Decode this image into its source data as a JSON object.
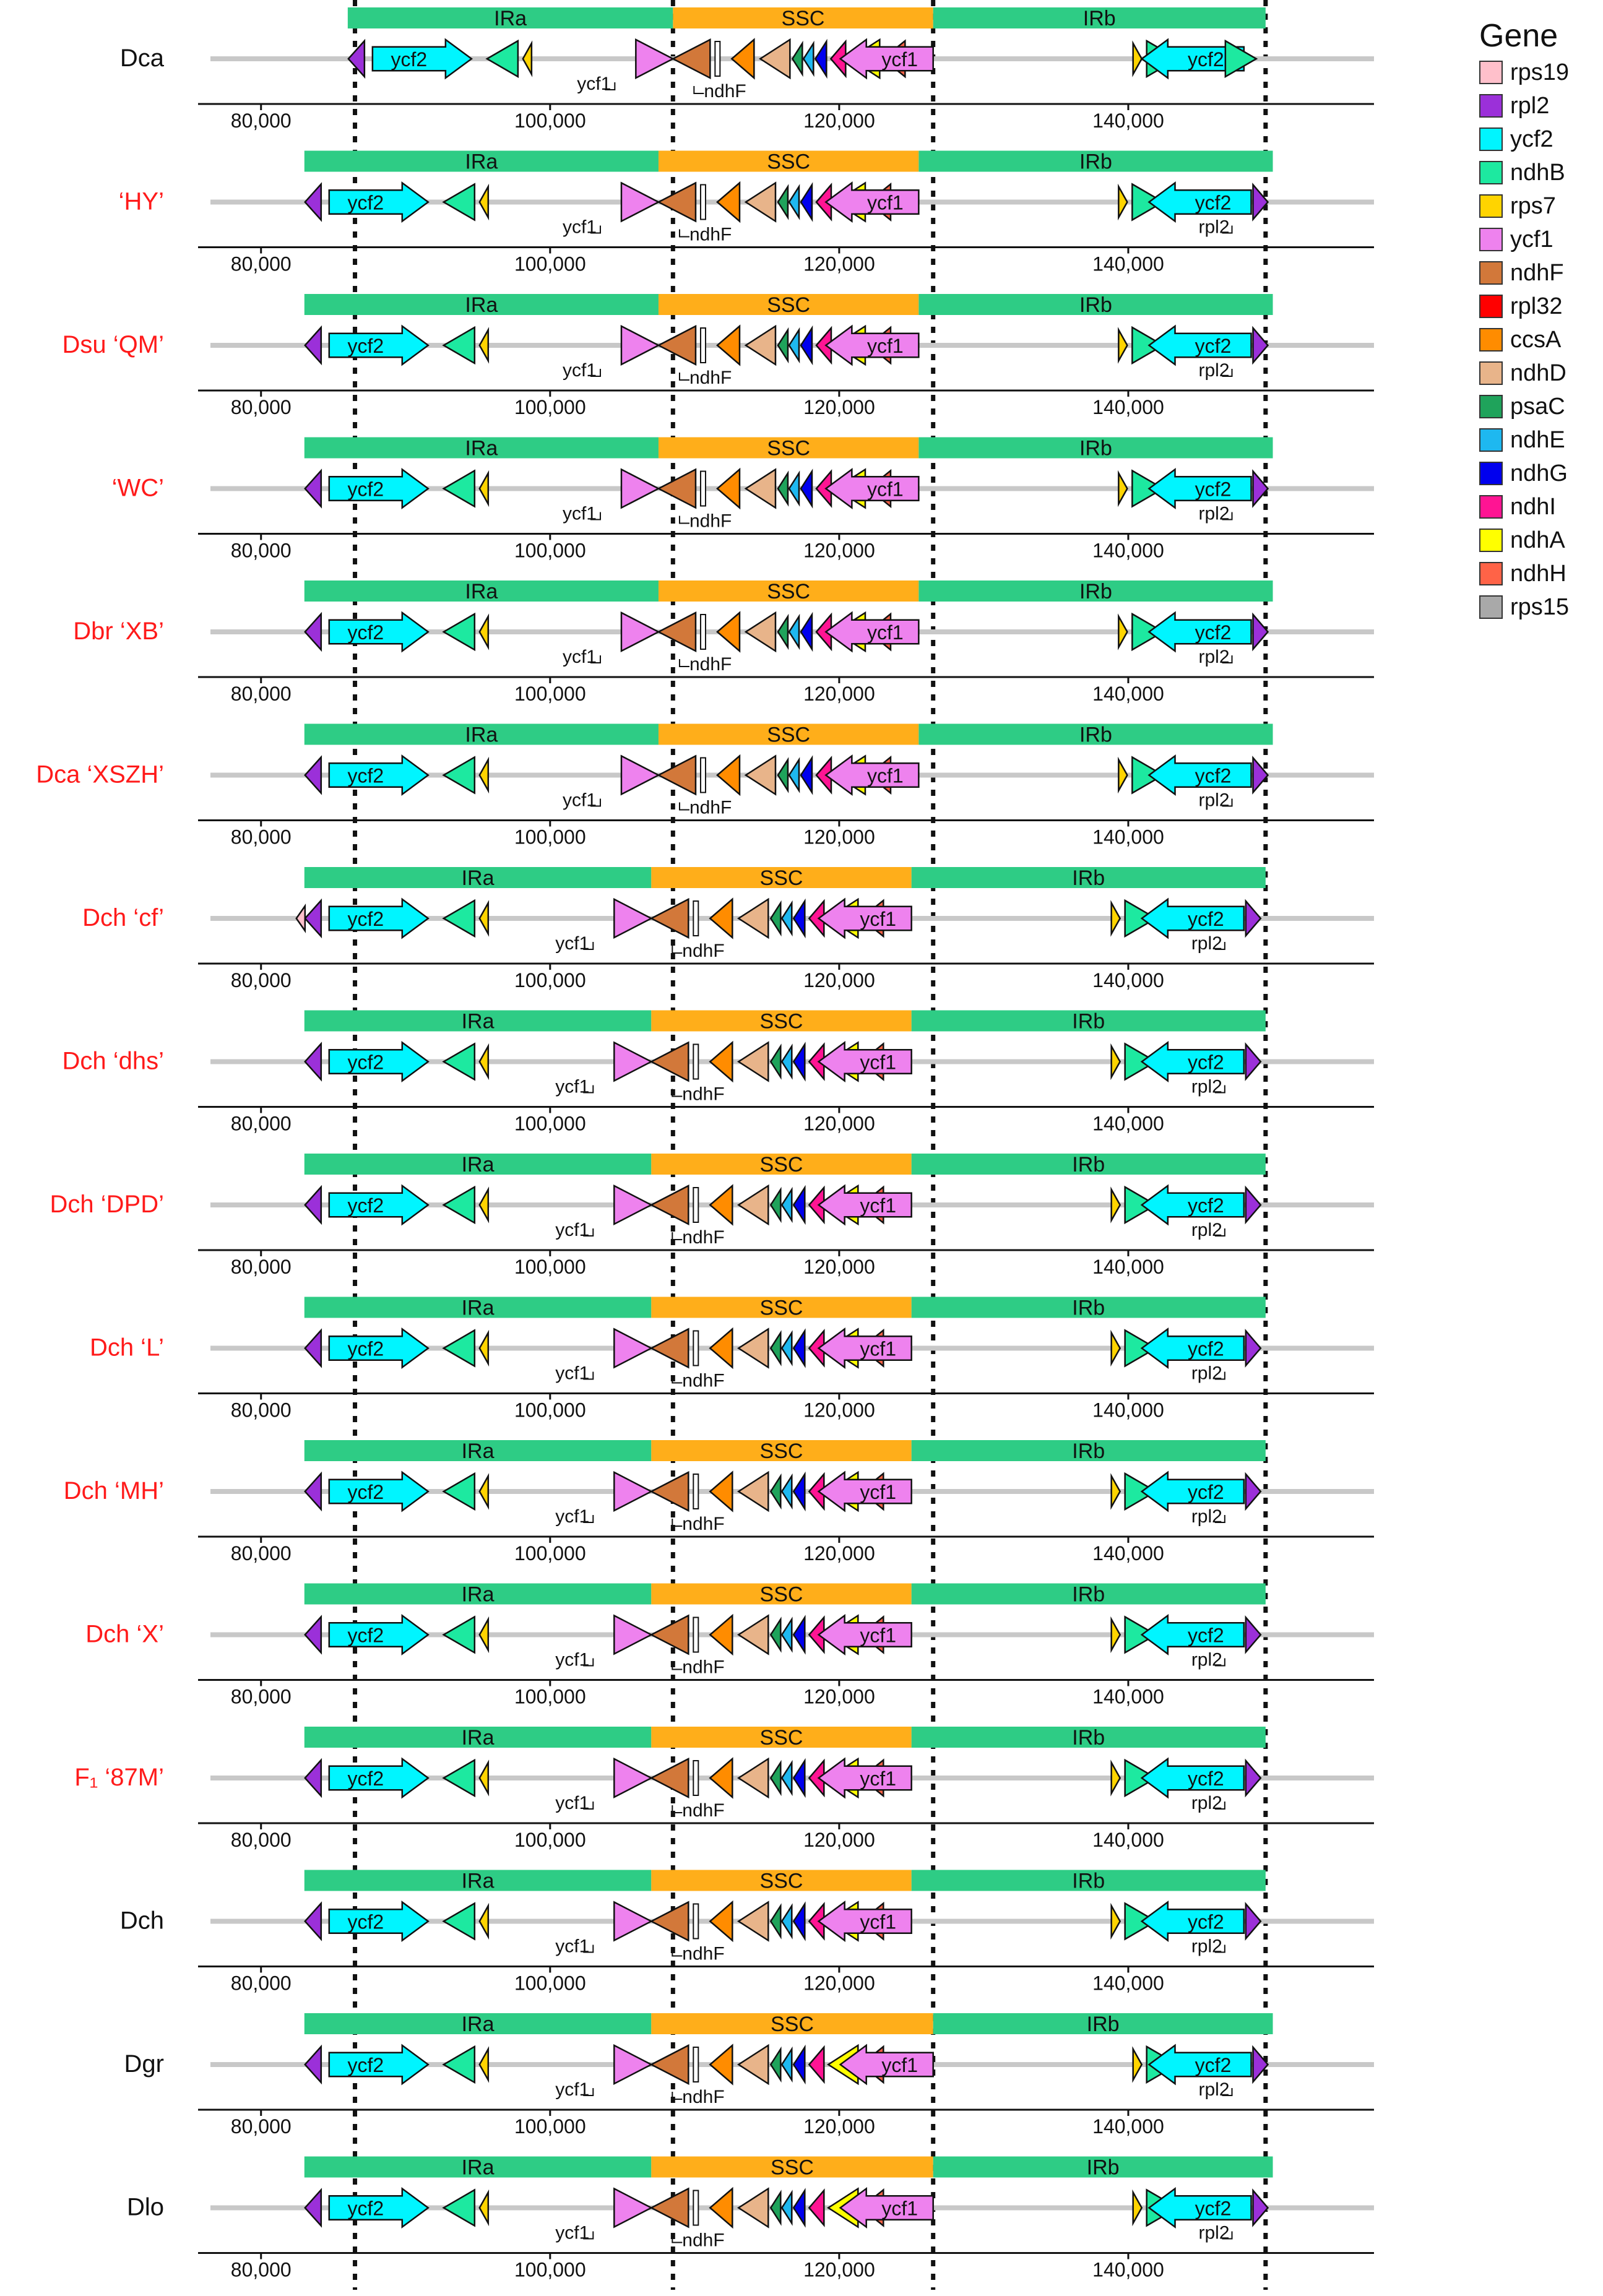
{
  "legend": {
    "title": "Gene",
    "items": [
      {
        "gene": "rps19",
        "color": "#FFC0CB"
      },
      {
        "gene": "rpl2",
        "color": "#9B30D9"
      },
      {
        "gene": "ycf2",
        "color": "#00F5FF"
      },
      {
        "gene": "ndhB",
        "color": "#1DE9A0"
      },
      {
        "gene": "rps7",
        "color": "#FFD400"
      },
      {
        "gene": "ycf1",
        "color": "#EE82EE"
      },
      {
        "gene": "ndhF",
        "color": "#D2783A"
      },
      {
        "gene": "rpl32",
        "color": "#FF0000"
      },
      {
        "gene": "ccsA",
        "color": "#FF8C00"
      },
      {
        "gene": "ndhD",
        "color": "#E8B48A"
      },
      {
        "gene": "psaC",
        "color": "#1FA35B"
      },
      {
        "gene": "ndhE",
        "color": "#1EB8F0"
      },
      {
        "gene": "ndhG",
        "color": "#0000EE"
      },
      {
        "gene": "ndhI",
        "color": "#FF1493"
      },
      {
        "gene": "ndhA",
        "color": "#FFFF00"
      },
      {
        "gene": "ndhH",
        "color": "#FF6347"
      },
      {
        "gene": "rps15",
        "color": "#A9A9A9"
      }
    ]
  },
  "chart_data": {
    "type": "genome-map",
    "title": "",
    "region_labels": [
      "IRa",
      "SSC",
      "IRb"
    ],
    "axis_ticks": [
      80000,
      100000,
      120000,
      140000
    ],
    "axis_tick_labels": [
      "80,000",
      "100,000",
      "120,000",
      "140,000"
    ],
    "junction_guides": [
      86500,
      108500,
      126500,
      149500
    ],
    "region_colors": {
      "IR": "#2ECC85",
      "SSC": "#FFAE1A"
    },
    "tracks": [
      {
        "label": "Dca",
        "red": false,
        "regions": [
          [
            86000,
            108500
          ],
          [
            108500,
            126500
          ],
          [
            126500,
            149500
          ]
        ],
        "labels": {
          "ycf1": true,
          "ndhF": true,
          "rpl2": false
        }
      },
      {
        "label": "‘HY’",
        "red": true,
        "regions": [
          [
            83000,
            107500
          ],
          [
            107500,
            125500
          ],
          [
            125500,
            150000
          ]
        ],
        "labels": {
          "ycf1": true,
          "ndhF": true,
          "rpl2": true
        }
      },
      {
        "label": "Dsu ‘QM’",
        "red": true,
        "regions": [
          [
            83000,
            107500
          ],
          [
            107500,
            125500
          ],
          [
            125500,
            150000
          ]
        ],
        "labels": {
          "ycf1": true,
          "ndhF": true,
          "rpl2": true
        }
      },
      {
        "label": "‘WC’",
        "red": true,
        "regions": [
          [
            83000,
            107500
          ],
          [
            107500,
            125500
          ],
          [
            125500,
            150000
          ]
        ],
        "labels": {
          "ycf1": true,
          "ndhF": true,
          "rpl2": true
        }
      },
      {
        "label": "Dbr ‘XB’",
        "red": true,
        "regions": [
          [
            83000,
            107500
          ],
          [
            107500,
            125500
          ],
          [
            125500,
            150000
          ]
        ],
        "labels": {
          "ycf1": true,
          "ndhF": true,
          "rpl2": true
        }
      },
      {
        "label": "Dca ‘XSZH’",
        "red": true,
        "regions": [
          [
            83000,
            107500
          ],
          [
            107500,
            125500
          ],
          [
            125500,
            150000
          ]
        ],
        "labels": {
          "ycf1": true,
          "ndhF": true,
          "rpl2": true
        }
      },
      {
        "label": "Dch ‘cf’",
        "red": true,
        "regions": [
          [
            83000,
            107000
          ],
          [
            107000,
            125000
          ],
          [
            125000,
            149500
          ]
        ],
        "labels": {
          "ycf1": true,
          "ndhF": true,
          "rpl2": true
        }
      },
      {
        "label": "Dch ‘dhs’",
        "red": true,
        "regions": [
          [
            83000,
            107000
          ],
          [
            107000,
            125000
          ],
          [
            125000,
            149500
          ]
        ],
        "labels": {
          "ycf1": true,
          "ndhF": true,
          "rpl2": true
        }
      },
      {
        "label": "Dch ‘DPD’",
        "red": true,
        "regions": [
          [
            83000,
            107000
          ],
          [
            107000,
            125000
          ],
          [
            125000,
            149500
          ]
        ],
        "labels": {
          "ycf1": true,
          "ndhF": true,
          "rpl2": true
        }
      },
      {
        "label": "Dch ‘L’",
        "red": true,
        "regions": [
          [
            83000,
            107000
          ],
          [
            107000,
            125000
          ],
          [
            125000,
            149500
          ]
        ],
        "labels": {
          "ycf1": true,
          "ndhF": true,
          "rpl2": true
        }
      },
      {
        "label": "Dch ‘MH’",
        "red": true,
        "regions": [
          [
            83000,
            107000
          ],
          [
            107000,
            125000
          ],
          [
            125000,
            149500
          ]
        ],
        "labels": {
          "ycf1": true,
          "ndhF": true,
          "rpl2": true
        }
      },
      {
        "label": "Dch ‘X’",
        "red": true,
        "regions": [
          [
            83000,
            107000
          ],
          [
            107000,
            125000
          ],
          [
            125000,
            149500
          ]
        ],
        "labels": {
          "ycf1": true,
          "ndhF": true,
          "rpl2": true
        }
      },
      {
        "label": "F₁ ‘87M’",
        "red": true,
        "regions": [
          [
            83000,
            107000
          ],
          [
            107000,
            125000
          ],
          [
            125000,
            149500
          ]
        ],
        "labels": {
          "ycf1": true,
          "ndhF": true,
          "rpl2": true
        }
      },
      {
        "label": "Dch",
        "red": false,
        "regions": [
          [
            83000,
            107000
          ],
          [
            107000,
            125000
          ],
          [
            125000,
            149500
          ]
        ],
        "labels": {
          "ycf1": true,
          "ndhF": true,
          "rpl2": true
        }
      },
      {
        "label": "Dgr",
        "red": false,
        "regions": [
          [
            83000,
            107000
          ],
          [
            107000,
            126500
          ],
          [
            126500,
            150000
          ]
        ],
        "labels": {
          "ycf1": true,
          "ndhF": true,
          "rpl2": true
        }
      },
      {
        "label": "Dlo",
        "red": false,
        "regions": [
          [
            83000,
            107000
          ],
          [
            107000,
            126500
          ],
          [
            126500,
            150000
          ]
        ],
        "labels": {
          "ycf1": true,
          "ndhF": true,
          "rpl2": true
        }
      }
    ]
  }
}
